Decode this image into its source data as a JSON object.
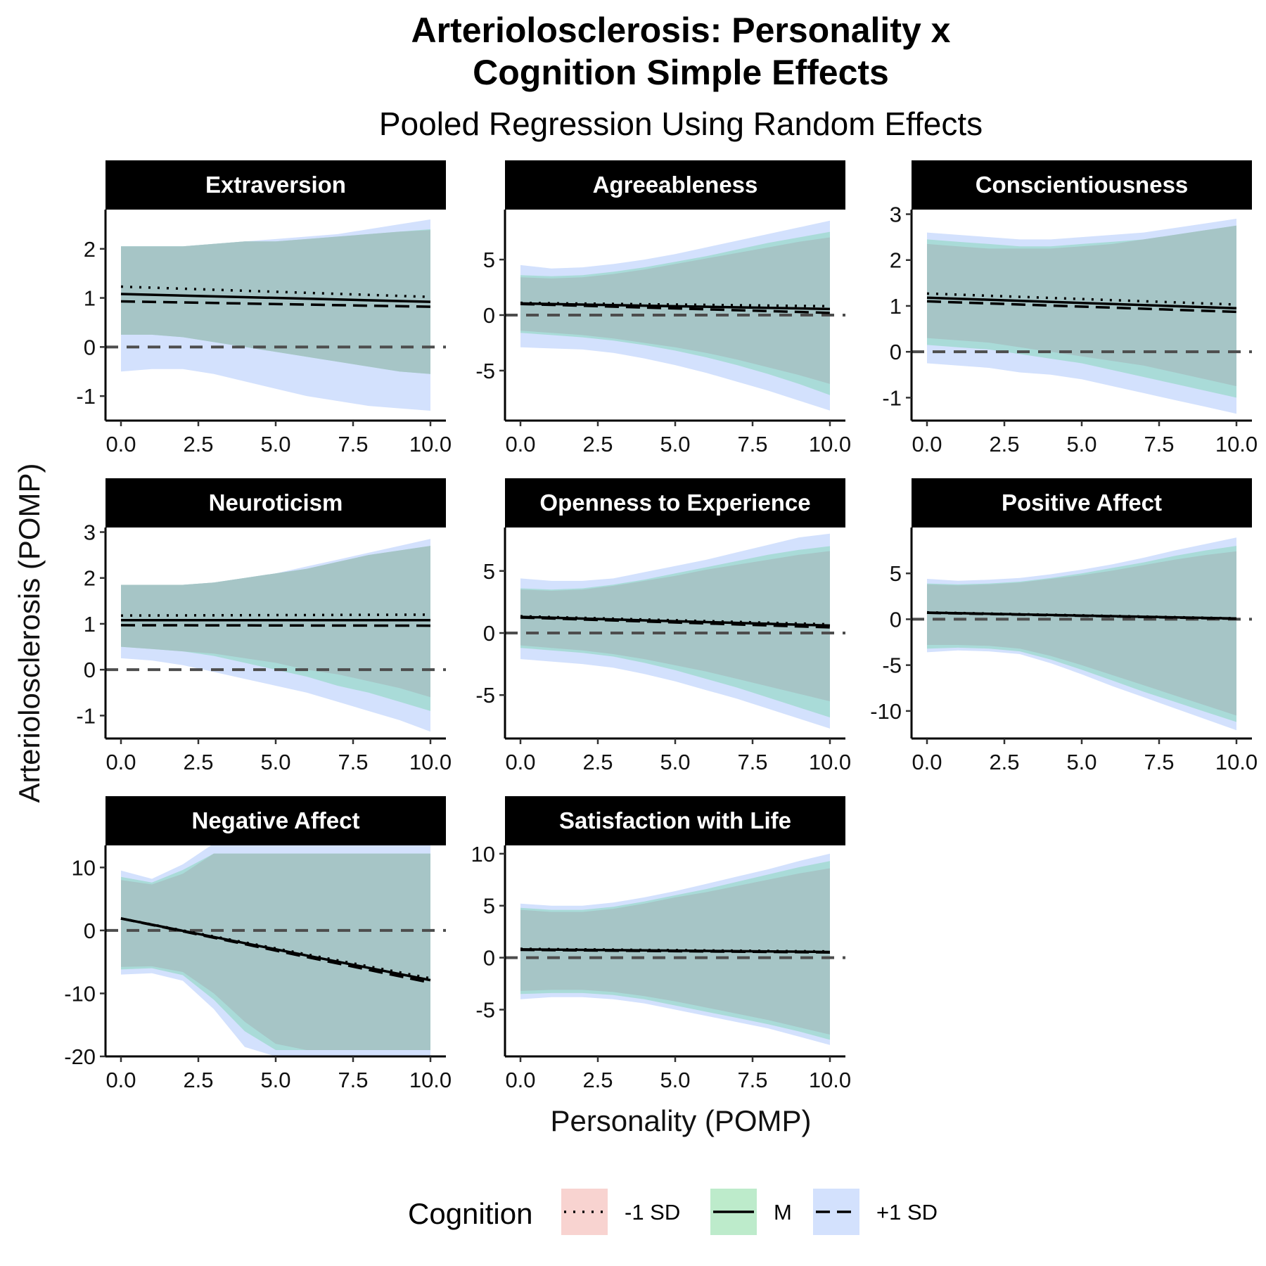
{
  "title_line1": "Arteriolosclerosis: Personality x",
  "title_line2": "Cognition Simple Effects",
  "subtitle": "Pooled Regression Using Random Effects",
  "x_axis_label": "Personality (POMP)",
  "y_axis_label": "Arteriolosclerosis (POMP)",
  "legend": {
    "title": "Cognition",
    "items": [
      {
        "label": "-1 SD",
        "line": "dotted",
        "fill": "#f8d3d0"
      },
      {
        "label": "M",
        "line": "solid",
        "fill": "#bdebcb"
      },
      {
        "label": "+1 SD",
        "line": "dashed",
        "fill": "#d3e1fd"
      }
    ]
  },
  "colors": {
    "ribbon_low": "#d3e1fd",
    "ribbon_mid": "#a9dbd8",
    "ribbon_overlap": "#a6c5c6",
    "reference_line": "#4d4d4d",
    "strip_background": "#000000"
  },
  "chart_data": {
    "type": "line",
    "facets_layout": {
      "columns": 3,
      "rows": 3
    },
    "x": [
      0,
      1,
      2,
      3,
      4,
      5,
      6,
      7,
      8,
      9,
      10
    ],
    "x_ticks": [
      0,
      2.5,
      5,
      7.5,
      10
    ],
    "x_tick_labels": [
      "0.0",
      "2.5",
      "5.0",
      "7.5",
      "10.0"
    ],
    "series_names": [
      "-1 SD",
      "M",
      "+1 SD"
    ],
    "reference_line_y": 0,
    "facets": [
      {
        "name": "Extraversion",
        "ylim": [
          -1.5,
          2.8
        ],
        "y_ticks": [
          -1,
          0,
          1,
          2
        ],
        "y_tick_labels": [
          "-1",
          "0",
          "1",
          "2"
        ],
        "lines": {
          "-1 SD": [
            1.23,
            1.02
          ],
          "M": [
            1.08,
            0.92
          ],
          "+1 SD": [
            0.93,
            0.82
          ]
        },
        "ribbon_outer_upper": [
          2.05,
          2.05,
          2.05,
          2.1,
          2.15,
          2.2,
          2.25,
          2.3,
          2.4,
          2.5,
          2.6
        ],
        "ribbon_outer_lower": [
          -0.5,
          -0.45,
          -0.45,
          -0.55,
          -0.7,
          -0.85,
          -1.0,
          -1.1,
          -1.2,
          -1.25,
          -1.3
        ],
        "ribbon_inner_upper": [
          2.05,
          2.05,
          2.05,
          2.1,
          2.15,
          2.15,
          2.2,
          2.25,
          2.3,
          2.35,
          2.4
        ],
        "ribbon_inner_lower": [
          0.25,
          0.25,
          0.2,
          0.1,
          0.0,
          -0.1,
          -0.2,
          -0.3,
          -0.4,
          -0.5,
          -0.55
        ],
        "ribbon_core_upper": [
          2.05,
          2.05,
          2.05,
          2.1,
          2.15,
          2.15,
          2.2,
          2.25,
          2.3,
          2.35,
          2.38
        ],
        "ribbon_core_lower": [
          0.25,
          0.25,
          0.2,
          0.1,
          0.0,
          -0.1,
          -0.2,
          -0.3,
          -0.4,
          -0.5,
          -0.55
        ]
      },
      {
        "name": "Agreeableness",
        "ylim": [
          -9.5,
          9.5
        ],
        "y_ticks": [
          -5,
          0,
          5
        ],
        "y_tick_labels": [
          "-5",
          "0",
          "5"
        ],
        "lines": {
          "-1 SD": [
            1.1,
            0.8
          ],
          "M": [
            1.05,
            0.55
          ],
          "+1 SD": [
            1.0,
            0.2
          ]
        },
        "ribbon_outer_upper": [
          4.5,
          4.2,
          4.3,
          4.6,
          5.0,
          5.5,
          6.1,
          6.7,
          7.3,
          7.9,
          8.5
        ],
        "ribbon_outer_lower": [
          -2.9,
          -3.0,
          -3.1,
          -3.4,
          -3.9,
          -4.5,
          -5.2,
          -6.0,
          -6.8,
          -7.7,
          -8.6
        ],
        "ribbon_inner_upper": [
          3.6,
          3.5,
          3.6,
          3.9,
          4.3,
          4.8,
          5.3,
          5.9,
          6.5,
          7.0,
          7.5
        ],
        "ribbon_inner_lower": [
          -1.6,
          -1.8,
          -2.0,
          -2.3,
          -2.7,
          -3.2,
          -3.8,
          -4.5,
          -5.3,
          -6.2,
          -7.2
        ],
        "ribbon_core_upper": [
          3.4,
          3.3,
          3.4,
          3.7,
          4.1,
          4.6,
          5.1,
          5.6,
          6.1,
          6.6,
          7.0
        ],
        "ribbon_core_lower": [
          -1.4,
          -1.6,
          -1.8,
          -2.1,
          -2.5,
          -2.9,
          -3.4,
          -4.0,
          -4.7,
          -5.4,
          -6.2
        ]
      },
      {
        "name": "Conscientiousness",
        "ylim": [
          -1.5,
          3.1
        ],
        "y_ticks": [
          -1,
          0,
          1,
          2,
          3
        ],
        "y_tick_labels": [
          "-1",
          "0",
          "1",
          "2",
          "3"
        ],
        "lines": {
          "-1 SD": [
            1.27,
            1.03
          ],
          "M": [
            1.18,
            0.95
          ],
          "+1 SD": [
            1.1,
            0.87
          ]
        },
        "ribbon_outer_upper": [
          2.6,
          2.55,
          2.5,
          2.45,
          2.45,
          2.5,
          2.55,
          2.6,
          2.7,
          2.8,
          2.9
        ],
        "ribbon_outer_lower": [
          -0.25,
          -0.3,
          -0.35,
          -0.45,
          -0.5,
          -0.6,
          -0.75,
          -0.9,
          -1.05,
          -1.2,
          -1.35
        ],
        "ribbon_inner_upper": [
          2.45,
          2.4,
          2.35,
          2.3,
          2.3,
          2.35,
          2.4,
          2.45,
          2.55,
          2.65,
          2.75
        ],
        "ribbon_inner_lower": [
          0.15,
          0.1,
          0.05,
          -0.05,
          -0.15,
          -0.25,
          -0.4,
          -0.55,
          -0.7,
          -0.85,
          -1.0
        ],
        "ribbon_core_upper": [
          2.35,
          2.3,
          2.25,
          2.25,
          2.25,
          2.3,
          2.35,
          2.45,
          2.55,
          2.65,
          2.75
        ],
        "ribbon_core_lower": [
          0.3,
          0.25,
          0.2,
          0.1,
          0.0,
          -0.1,
          -0.2,
          -0.3,
          -0.45,
          -0.6,
          -0.75
        ]
      },
      {
        "name": "Neuroticism",
        "ylim": [
          -1.5,
          3.1
        ],
        "y_ticks": [
          -1,
          0,
          1,
          2,
          3
        ],
        "y_tick_labels": [
          "-1",
          "0",
          "1",
          "2",
          "3"
        ],
        "lines": {
          "-1 SD": [
            1.18,
            1.2
          ],
          "M": [
            1.08,
            1.08
          ],
          "+1 SD": [
            0.97,
            0.96
          ]
        },
        "ribbon_outer_upper": [
          1.85,
          1.85,
          1.85,
          1.9,
          2.0,
          2.1,
          2.25,
          2.4,
          2.55,
          2.7,
          2.85
        ],
        "ribbon_outer_lower": [
          0.25,
          0.2,
          0.1,
          -0.05,
          -0.2,
          -0.35,
          -0.5,
          -0.7,
          -0.9,
          -1.1,
          -1.35
        ],
        "ribbon_inner_upper": [
          1.85,
          1.85,
          1.85,
          1.9,
          2.0,
          2.1,
          2.2,
          2.35,
          2.5,
          2.6,
          2.7
        ],
        "ribbon_inner_lower": [
          0.5,
          0.45,
          0.4,
          0.3,
          0.15,
          0.0,
          -0.15,
          -0.35,
          -0.5,
          -0.7,
          -0.9
        ],
        "ribbon_core_upper": [
          1.85,
          1.85,
          1.85,
          1.9,
          2.0,
          2.1,
          2.2,
          2.35,
          2.5,
          2.6,
          2.7
        ],
        "ribbon_core_lower": [
          0.5,
          0.45,
          0.4,
          0.35,
          0.25,
          0.15,
          0.0,
          -0.1,
          -0.25,
          -0.4,
          -0.6
        ]
      },
      {
        "name": "Openness to Experience",
        "ylim": [
          -8.5,
          8.5
        ],
        "y_ticks": [
          -5,
          0,
          5
        ],
        "y_tick_labels": [
          "-5",
          "0",
          "5"
        ],
        "lines": {
          "-1 SD": [
            1.35,
            0.7
          ],
          "M": [
            1.3,
            0.6
          ],
          "+1 SD": [
            1.25,
            0.45
          ]
        },
        "ribbon_outer_upper": [
          4.4,
          4.2,
          4.2,
          4.4,
          4.9,
          5.4,
          5.9,
          6.5,
          7.1,
          7.7,
          8.0
        ],
        "ribbon_outer_lower": [
          -2.1,
          -2.3,
          -2.5,
          -2.8,
          -3.3,
          -3.9,
          -4.6,
          -5.3,
          -6.1,
          -6.9,
          -7.7
        ],
        "ribbon_inner_upper": [
          3.6,
          3.5,
          3.6,
          3.9,
          4.3,
          4.8,
          5.3,
          5.8,
          6.3,
          6.7,
          7.0
        ],
        "ribbon_inner_lower": [
          -1.2,
          -1.4,
          -1.6,
          -1.9,
          -2.4,
          -3.0,
          -3.7,
          -4.4,
          -5.2,
          -6.0,
          -6.8
        ],
        "ribbon_core_upper": [
          3.5,
          3.4,
          3.5,
          3.8,
          4.2,
          4.6,
          5.1,
          5.5,
          5.9,
          6.3,
          6.6
        ],
        "ribbon_core_lower": [
          -1.0,
          -1.2,
          -1.4,
          -1.7,
          -2.1,
          -2.6,
          -3.1,
          -3.7,
          -4.3,
          -4.9,
          -5.5
        ]
      },
      {
        "name": "Positive Affect",
        "ylim": [
          -13,
          10
        ],
        "y_ticks": [
          -10,
          -5,
          0,
          5
        ],
        "y_tick_labels": [
          "-10",
          "-5",
          "0",
          "5"
        ],
        "lines": {
          "-1 SD": [
            0.75,
            0.1
          ],
          "M": [
            0.72,
            0.08
          ],
          "+1 SD": [
            0.7,
            0.05
          ]
        },
        "ribbon_outer_upper": [
          4.4,
          4.2,
          4.3,
          4.5,
          4.9,
          5.4,
          6.0,
          6.7,
          7.5,
          8.2,
          8.9
        ],
        "ribbon_outer_lower": [
          -3.6,
          -3.4,
          -3.5,
          -3.8,
          -4.8,
          -6.0,
          -7.3,
          -8.5,
          -9.7,
          -10.9,
          -12.1
        ],
        "ribbon_inner_upper": [
          3.9,
          3.8,
          3.9,
          4.1,
          4.5,
          5.0,
          5.6,
          6.2,
          6.9,
          7.5,
          8.0
        ],
        "ribbon_inner_lower": [
          -3.2,
          -3.1,
          -3.2,
          -3.5,
          -4.4,
          -5.5,
          -6.7,
          -7.9,
          -9.0,
          -10.1,
          -11.2
        ],
        "ribbon_core_upper": [
          3.8,
          3.7,
          3.8,
          4.0,
          4.4,
          4.8,
          5.3,
          5.9,
          6.5,
          7.0,
          7.4
        ],
        "ribbon_core_lower": [
          -2.8,
          -2.8,
          -2.9,
          -3.2,
          -4.0,
          -5.0,
          -6.1,
          -7.2,
          -8.3,
          -9.4,
          -10.5
        ]
      },
      {
        "name": "Negative Affect",
        "ylim": [
          -20,
          13.5
        ],
        "y_ticks": [
          -20,
          -10,
          0,
          10
        ],
        "y_tick_labels": [
          "-20",
          "-10",
          "0",
          "10"
        ],
        "lines": {
          "-1 SD": [
            1.9,
            -7.6
          ],
          "M": [
            1.9,
            -7.9
          ],
          "+1 SD": [
            1.9,
            -8.3
          ]
        },
        "ribbon_outer_upper": [
          9.5,
          8.2,
          10.5,
          13.8,
          13.8,
          13.8,
          13.8,
          13.8,
          13.8,
          13.8,
          13.8
        ],
        "ribbon_outer_lower": [
          -7.0,
          -6.8,
          -8.0,
          -12.5,
          -18.5,
          -20.0,
          -20.0,
          -20.0,
          -20.0,
          -20.0,
          -20.0
        ],
        "ribbon_inner_upper": [
          8.5,
          7.6,
          9.6,
          12.2,
          12.2,
          12.2,
          12.2,
          12.2,
          12.2,
          12.2,
          12.2
        ],
        "ribbon_inner_lower": [
          -6.2,
          -6.0,
          -7.1,
          -11.0,
          -16.0,
          -19.0,
          -19.0,
          -19.0,
          -19.0,
          -19.0,
          -19.0
        ],
        "ribbon_core_upper": [
          8.0,
          7.3,
          9.0,
          12.2,
          12.2,
          12.2,
          12.2,
          12.2,
          12.2,
          12.2,
          12.2
        ],
        "ribbon_core_lower": [
          -5.8,
          -5.7,
          -6.6,
          -10.0,
          -14.5,
          -18.0,
          -19.0,
          -19.0,
          -19.0,
          -19.0,
          -19.0
        ]
      },
      {
        "name": "Satisfaction with Life",
        "ylim": [
          -9.5,
          10.8
        ],
        "y_ticks": [
          -5,
          0,
          5,
          10
        ],
        "y_tick_labels": [
          "-5",
          "0",
          "5",
          "10"
        ],
        "lines": {
          "-1 SD": [
            0.85,
            0.6
          ],
          "M": [
            0.8,
            0.55
          ],
          "+1 SD": [
            0.75,
            0.5
          ]
        },
        "ribbon_outer_upper": [
          5.2,
          5.0,
          5.0,
          5.3,
          5.8,
          6.4,
          7.1,
          7.8,
          8.5,
          9.3,
          10.0
        ],
        "ribbon_outer_lower": [
          -4.0,
          -3.8,
          -3.8,
          -4.0,
          -4.4,
          -5.0,
          -5.6,
          -6.2,
          -6.8,
          -7.6,
          -8.4
        ],
        "ribbon_inner_upper": [
          4.8,
          4.6,
          4.6,
          4.9,
          5.4,
          6.0,
          6.6,
          7.3,
          8.0,
          8.7,
          9.3
        ],
        "ribbon_inner_lower": [
          -3.5,
          -3.4,
          -3.4,
          -3.6,
          -4.0,
          -4.6,
          -5.2,
          -5.8,
          -6.4,
          -7.1,
          -7.9
        ],
        "ribbon_core_upper": [
          4.6,
          4.4,
          4.4,
          4.7,
          5.2,
          5.8,
          6.3,
          6.9,
          7.5,
          8.1,
          8.6
        ],
        "ribbon_core_lower": [
          -3.2,
          -3.1,
          -3.1,
          -3.3,
          -3.7,
          -4.2,
          -4.8,
          -5.4,
          -6.0,
          -6.7,
          -7.4
        ]
      }
    ]
  }
}
